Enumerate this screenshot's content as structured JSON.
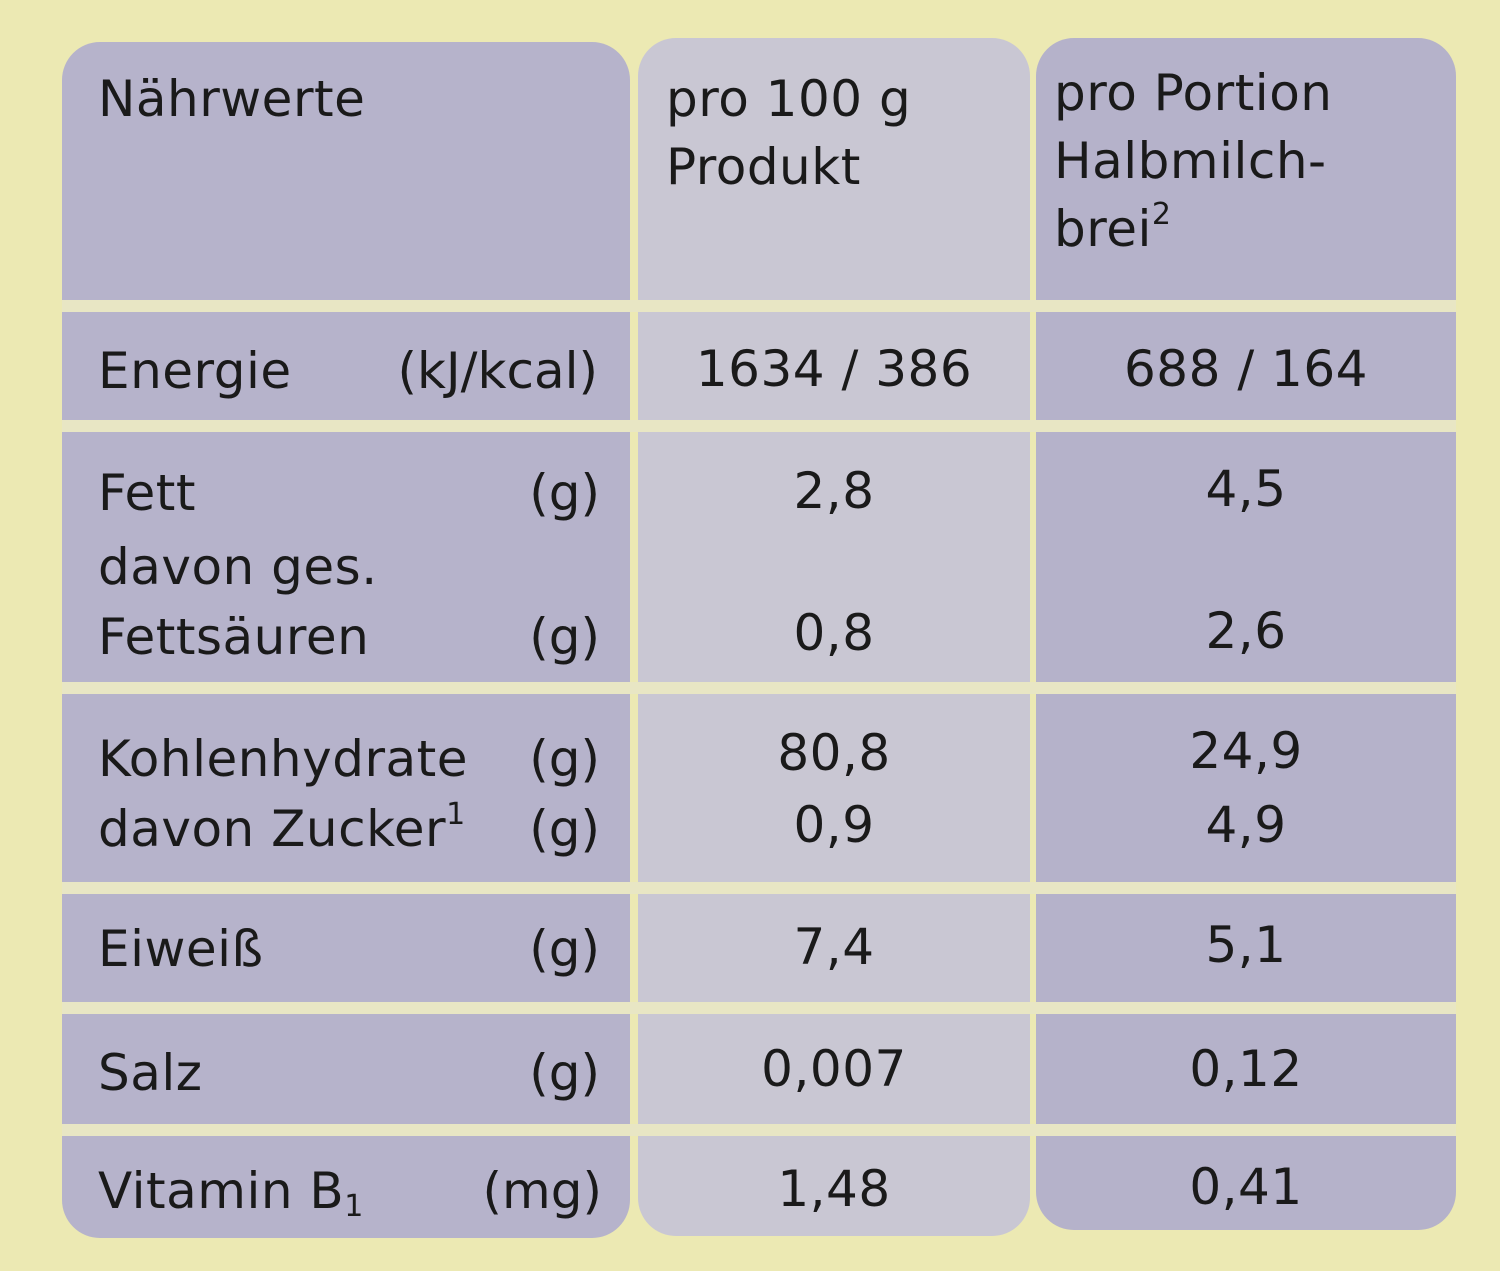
{
  "header": {
    "col1": "Nährwerte",
    "col2_line1": "pro 100 g",
    "col2_line2": "Produkt",
    "col3_line1": "pro Portion",
    "col3_line2": "Halbmilch-",
    "col3_line3": "brei",
    "col3_sup": "2"
  },
  "rows": {
    "energie": {
      "label": "Energie",
      "unit": "(kJ/kcal)",
      "per100": "1634 / 386",
      "portion": "688 / 164"
    },
    "fett": {
      "label": "Fett",
      "unit": "(g)",
      "per100": "2,8",
      "portion": "4,5"
    },
    "fettsaeuren": {
      "label_line1": "davon ges.",
      "label_line2": "Fettsäuren",
      "unit": "(g)",
      "per100": "0,8",
      "portion": "2,6"
    },
    "kohlenhydrate": {
      "label": "Kohlenhydrate",
      "unit": "(g)",
      "per100": "80,8",
      "portion": "24,9"
    },
    "zucker": {
      "label": "davon Zucker",
      "sup": "1",
      "unit": "(g)",
      "per100": "0,9",
      "portion": "4,9"
    },
    "eiweiss": {
      "label": "Eiweiß",
      "unit": "(g)",
      "per100": "7,4",
      "portion": "5,1"
    },
    "salz": {
      "label": "Salz",
      "unit": "(g)",
      "per100": "0,007",
      "portion": "0,12"
    },
    "vitamin": {
      "label": "Vitamin B",
      "sub": "1",
      "unit": "(mg)",
      "per100": "1,48",
      "portion": "0,41"
    }
  }
}
